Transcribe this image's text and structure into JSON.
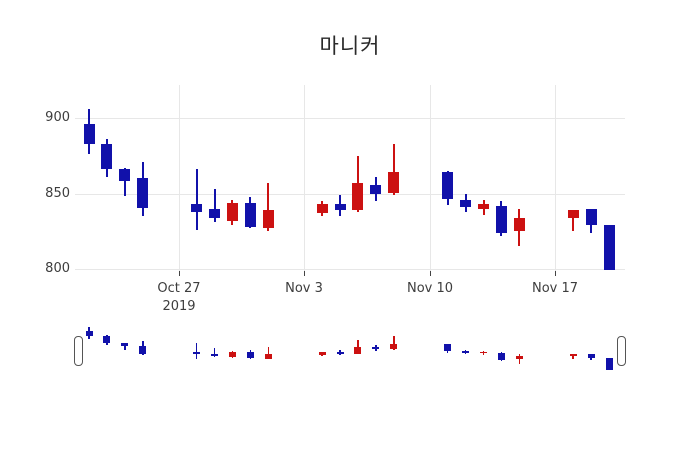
{
  "title": "마니커",
  "colors": {
    "increasing": "#cc1111",
    "decreasing": "#1111aa",
    "grid": "#e7e7e7",
    "text": "#3d3d3d",
    "background": "#ffffff"
  },
  "y_axis": {
    "labels": [
      "900",
      "850",
      "800"
    ],
    "values": [
      900,
      850,
      800
    ]
  },
  "x_axis": {
    "ticks": [
      {
        "label": "Oct 27",
        "sublabel": "2019",
        "day_offset": 5
      },
      {
        "label": "Nov 3",
        "sublabel": "",
        "day_offset": 12
      },
      {
        "label": "Nov 10",
        "sublabel": "",
        "day_offset": 19
      },
      {
        "label": "Nov 17",
        "sublabel": "",
        "day_offset": 26
      }
    ]
  },
  "rangeslider": {
    "present": true,
    "handles": [
      "left",
      "right"
    ]
  },
  "chart_data": {
    "type": "candlestick",
    "title": "마니커",
    "xlabel": "",
    "ylabel": "",
    "ylim": [
      798,
      922
    ],
    "grid": true,
    "increasing_color": "#cc1111",
    "decreasing_color": "#1111aa",
    "dates": [
      "2019-10-22",
      "2019-10-23",
      "2019-10-24",
      "2019-10-25",
      "2019-10-28",
      "2019-10-29",
      "2019-10-30",
      "2019-10-31",
      "2019-11-01",
      "2019-11-04",
      "2019-11-05",
      "2019-11-06",
      "2019-11-07",
      "2019-11-08",
      "2019-11-11",
      "2019-11-12",
      "2019-11-13",
      "2019-11-14",
      "2019-11-15",
      "2019-11-18",
      "2019-11-19",
      "2019-11-20"
    ],
    "day_offsets": [
      0,
      1,
      2,
      3,
      6,
      7,
      8,
      9,
      10,
      13,
      14,
      15,
      16,
      17,
      20,
      21,
      22,
      23,
      24,
      27,
      28,
      29
    ],
    "open": [
      896,
      883,
      866,
      860,
      843,
      840,
      832,
      844,
      827,
      837,
      843,
      839,
      856,
      850,
      864,
      846,
      840,
      842,
      825,
      834,
      840,
      829
    ],
    "high": [
      906,
      886,
      867,
      871,
      866,
      853,
      846,
      848,
      857,
      845,
      849,
      875,
      861,
      883,
      865,
      850,
      846,
      845,
      840,
      839,
      840,
      829
    ],
    "low": [
      876,
      861,
      848,
      835,
      826,
      831,
      829,
      827,
      825,
      835,
      835,
      838,
      845,
      849,
      842,
      838,
      836,
      822,
      815,
      825,
      824,
      799
    ],
    "close": [
      883,
      866,
      858,
      840,
      838,
      834,
      844,
      828,
      839,
      843,
      839,
      857,
      850,
      864,
      846,
      841,
      843,
      824,
      834,
      839,
      829,
      799
    ]
  }
}
